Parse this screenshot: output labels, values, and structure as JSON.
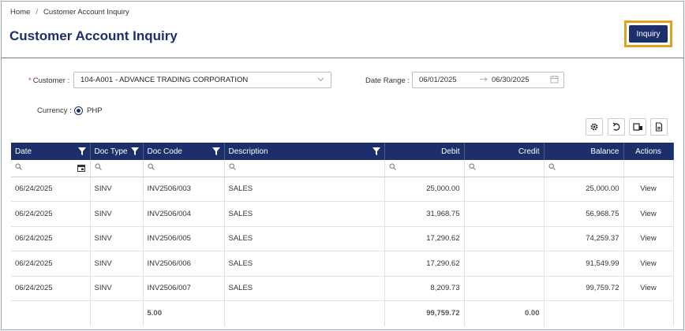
{
  "breadcrumb": {
    "home": "Home",
    "current": "Customer Account Inquiry"
  },
  "page": {
    "title": "Customer Account Inquiry"
  },
  "actions": {
    "inquiry": "Inquiry"
  },
  "form": {
    "customer_label": "Customer :",
    "customer_value": "104-A001 - ADVANCE TRADING CORPORATION",
    "date_range_label": "Date Range :",
    "date_from": "06/01/2025",
    "date_to": "06/30/2025",
    "currency_label": "Currency :",
    "currency_value": "PHP"
  },
  "colors": {
    "primary": "#1c2f6b",
    "highlight": "#e0a21b",
    "link": "#2a8fd0"
  },
  "toolbar": [
    "gear-icon",
    "undo-icon",
    "columns-icon",
    "export-icon"
  ],
  "table": {
    "columns": [
      "Date",
      "Doc Type",
      "Doc Code",
      "Description",
      "Debit",
      "Credit",
      "Balance",
      "Actions"
    ],
    "rows": [
      {
        "date": "06/24/2025",
        "doc_type": "SINV",
        "doc_code": "INV2506/003",
        "description": "SALES",
        "debit": "25,000.00",
        "credit": "",
        "balance": "25,000.00",
        "action": "View"
      },
      {
        "date": "06/24/2025",
        "doc_type": "SINV",
        "doc_code": "INV2506/004",
        "description": "SALES",
        "debit": "31,968.75",
        "credit": "",
        "balance": "56,968.75",
        "action": "View"
      },
      {
        "date": "06/24/2025",
        "doc_type": "SINV",
        "doc_code": "INV2506/005",
        "description": "SALES",
        "debit": "17,290.62",
        "credit": "",
        "balance": "74,259.37",
        "action": "View"
      },
      {
        "date": "06/24/2025",
        "doc_type": "SINV",
        "doc_code": "INV2506/006",
        "description": "SALES",
        "debit": "17,290.62",
        "credit": "",
        "balance": "91,549.99",
        "action": "View"
      },
      {
        "date": "06/24/2025",
        "doc_type": "SINV",
        "doc_code": "INV2506/007",
        "description": "SALES",
        "debit": "8,209.73",
        "credit": "",
        "balance": "99,759.72",
        "action": "View"
      }
    ],
    "footer": {
      "count": "5.00",
      "debit_total": "99,759.72",
      "credit_total": "0.00"
    }
  }
}
